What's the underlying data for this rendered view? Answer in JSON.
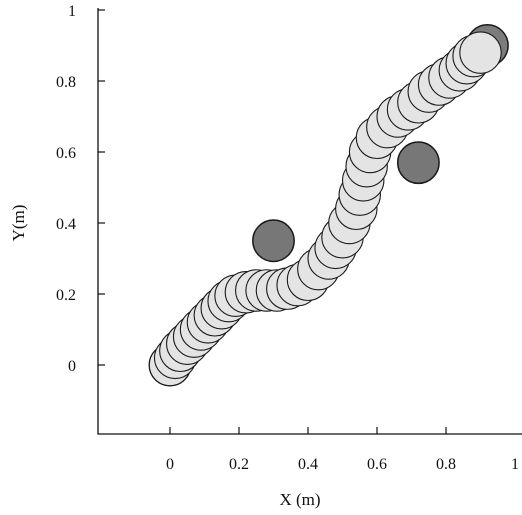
{
  "chart_data": {
    "type": "scatter",
    "title": "",
    "xlabel": "X (m)",
    "ylabel": "Y(m)",
    "xlim": [
      -0.2,
      1.0
    ],
    "ylim": [
      -0.2,
      1.0
    ],
    "x_ticks": [
      "0",
      "0.2",
      "0.4",
      "0.6",
      "0.8",
      "1"
    ],
    "y_ticks": [
      "0",
      "0.2",
      "0.4",
      "0.6",
      "0.8",
      "1"
    ],
    "x_tick_values": [
      0,
      0.2,
      0.4,
      0.6,
      0.8,
      1.0
    ],
    "y_tick_values": [
      0,
      0.2,
      0.4,
      0.6,
      0.8,
      1.0
    ],
    "grid": false,
    "colors": {
      "trajectory_fill": "#e4e4e4",
      "trajectory_stroke": "#1a1a1a",
      "obstacle_fill": "#777777",
      "start_fill": "#6e6e6e",
      "goal_fill": "#7c7c7c",
      "axis": "#111111"
    },
    "circle_radius": 0.06,
    "start": {
      "x": 0.0,
      "y": 0.0
    },
    "goal": {
      "x": 0.92,
      "y": 0.9
    },
    "obstacles": [
      {
        "x": 0.3,
        "y": 0.35
      },
      {
        "x": 0.72,
        "y": 0.57
      }
    ],
    "trajectory": [
      {
        "x": 0.0,
        "y": 0.0
      },
      {
        "x": 0.015,
        "y": 0.02
      },
      {
        "x": 0.03,
        "y": 0.04
      },
      {
        "x": 0.05,
        "y": 0.06
      },
      {
        "x": 0.07,
        "y": 0.08
      },
      {
        "x": 0.09,
        "y": 0.1
      },
      {
        "x": 0.11,
        "y": 0.12
      },
      {
        "x": 0.13,
        "y": 0.14
      },
      {
        "x": 0.15,
        "y": 0.16
      },
      {
        "x": 0.17,
        "y": 0.18
      },
      {
        "x": 0.19,
        "y": 0.195
      },
      {
        "x": 0.22,
        "y": 0.205
      },
      {
        "x": 0.25,
        "y": 0.21
      },
      {
        "x": 0.28,
        "y": 0.21
      },
      {
        "x": 0.31,
        "y": 0.21
      },
      {
        "x": 0.34,
        "y": 0.215
      },
      {
        "x": 0.37,
        "y": 0.225
      },
      {
        "x": 0.4,
        "y": 0.24
      },
      {
        "x": 0.43,
        "y": 0.27
      },
      {
        "x": 0.46,
        "y": 0.3
      },
      {
        "x": 0.48,
        "y": 0.33
      },
      {
        "x": 0.5,
        "y": 0.36
      },
      {
        "x": 0.52,
        "y": 0.4
      },
      {
        "x": 0.54,
        "y": 0.44
      },
      {
        "x": 0.55,
        "y": 0.48
      },
      {
        "x": 0.56,
        "y": 0.52
      },
      {
        "x": 0.57,
        "y": 0.56
      },
      {
        "x": 0.58,
        "y": 0.6
      },
      {
        "x": 0.6,
        "y": 0.64
      },
      {
        "x": 0.63,
        "y": 0.67
      },
      {
        "x": 0.66,
        "y": 0.7
      },
      {
        "x": 0.69,
        "y": 0.72
      },
      {
        "x": 0.72,
        "y": 0.74
      },
      {
        "x": 0.75,
        "y": 0.77
      },
      {
        "x": 0.78,
        "y": 0.79
      },
      {
        "x": 0.81,
        "y": 0.81
      },
      {
        "x": 0.84,
        "y": 0.83
      },
      {
        "x": 0.86,
        "y": 0.85
      },
      {
        "x": 0.88,
        "y": 0.87
      },
      {
        "x": 0.9,
        "y": 0.88
      }
    ]
  }
}
